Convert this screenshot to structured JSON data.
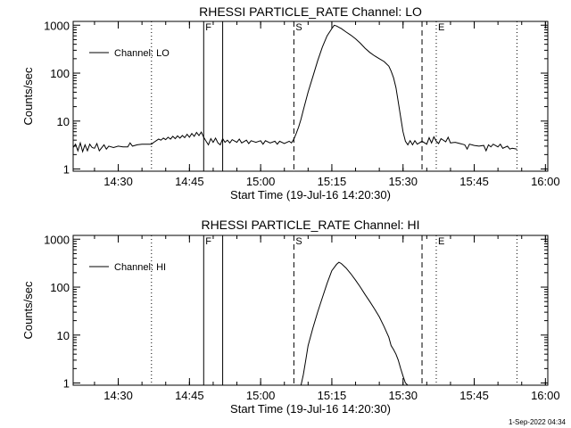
{
  "footer": {
    "timestamp": "1-Sep-2022 04:34"
  },
  "chart_data": [
    {
      "type": "line",
      "title": "RHESSI PARTICLE_RATE Channel: LO",
      "xlabel": "Start Time (19-Jul-16 14:20:30)",
      "ylabel": "Counts/sec",
      "yscale": "log",
      "xlim_minutes": [
        "14:20:30",
        "16:00:30"
      ],
      "ylim": [
        0.9,
        1200
      ],
      "xticks": [
        "14:30",
        "14:45",
        "15:00",
        "15:15",
        "15:30",
        "15:45",
        "16:00"
      ],
      "yticks": [
        "1",
        "10",
        "100",
        "1000"
      ],
      "legend": {
        "label": "Channel: LO",
        "position": "top-left"
      },
      "grid": false,
      "markers": [
        {
          "label": "",
          "time": "14:37",
          "style": "dotted"
        },
        {
          "label": "F",
          "time": "14:48",
          "style": "solid"
        },
        {
          "label": "",
          "time": "14:52",
          "style": "solid"
        },
        {
          "label": "S",
          "time": "15:07",
          "style": "dashed"
        },
        {
          "label": "",
          "time": "15:34",
          "style": "dashed"
        },
        {
          "label": "E",
          "time": "15:37",
          "style": "dotted"
        },
        {
          "label": "",
          "time": "15:54",
          "style": "dotted"
        }
      ],
      "series": [
        {
          "name": "Channel: LO",
          "points": [
            [
              "14:20:30",
              2.8
            ],
            [
              "14:21:00",
              3.3
            ],
            [
              "14:21:30",
              2.4
            ],
            [
              "14:22:00",
              3.5
            ],
            [
              "14:22:30",
              2.3
            ],
            [
              "14:23:00",
              3.2
            ],
            [
              "14:23:30",
              2.4
            ],
            [
              "14:24:00",
              3.3
            ],
            [
              "14:24:30",
              2.8
            ],
            [
              "14:25:00",
              2.7
            ],
            [
              "14:25:30",
              3.4
            ],
            [
              "14:26:00",
              2.4
            ],
            [
              "14:27:00",
              3.2
            ],
            [
              "14:27:30",
              2.6
            ],
            [
              "14:28:00",
              3.0
            ],
            [
              "14:29:00",
              2.8
            ],
            [
              "14:30:00",
              3.0
            ],
            [
              "14:31:00",
              2.9
            ],
            [
              "14:32:00",
              2.9
            ],
            [
              "14:32:30",
              3.5
            ],
            [
              "14:33:00",
              3.0
            ],
            [
              "14:34:00",
              3.2
            ],
            [
              "14:35:00",
              3.3
            ],
            [
              "14:36:00",
              3.3
            ],
            [
              "14:37:00",
              3.3
            ],
            [
              "14:37:30",
              3.6
            ],
            [
              "14:38:00",
              3.9
            ],
            [
              "14:38:30",
              4.2
            ],
            [
              "14:39:00",
              4.0
            ],
            [
              "14:39:30",
              4.4
            ],
            [
              "14:40:00",
              4.1
            ],
            [
              "14:40:30",
              4.6
            ],
            [
              "14:41:00",
              4.2
            ],
            [
              "14:41:30",
              4.8
            ],
            [
              "14:42:00",
              4.3
            ],
            [
              "14:42:30",
              4.9
            ],
            [
              "14:43:00",
              4.4
            ],
            [
              "14:43:30",
              5.0
            ],
            [
              "14:44:00",
              4.5
            ],
            [
              "14:44:30",
              5.3
            ],
            [
              "14:45:00",
              4.6
            ],
            [
              "14:45:30",
              5.5
            ],
            [
              "14:46:00",
              4.8
            ],
            [
              "14:46:30",
              5.8
            ],
            [
              "14:47:00",
              5.0
            ],
            [
              "14:47:30",
              5.9
            ],
            [
              "14:48:00",
              4.6
            ],
            [
              "14:48:30",
              3.8
            ],
            [
              "14:49:00",
              3.2
            ],
            [
              "14:49:30",
              4.3
            ],
            [
              "14:50:00",
              3.6
            ],
            [
              "14:50:30",
              4.4
            ],
            [
              "14:51:00",
              3.5
            ],
            [
              "14:51:30",
              3.2
            ],
            [
              "14:52:00",
              4.3
            ],
            [
              "14:52:30",
              3.6
            ],
            [
              "14:53:00",
              4.0
            ],
            [
              "14:53:30",
              3.5
            ],
            [
              "14:54:00",
              4.1
            ],
            [
              "14:55:00",
              3.6
            ],
            [
              "14:55:30",
              4.2
            ],
            [
              "14:56:00",
              3.5
            ],
            [
              "14:57:00",
              4.0
            ],
            [
              "14:57:30",
              3.4
            ],
            [
              "14:58:00",
              3.9
            ],
            [
              "14:59:00",
              3.6
            ],
            [
              "15:00:00",
              3.9
            ],
            [
              "15:00:30",
              3.3
            ],
            [
              "15:01:00",
              3.9
            ],
            [
              "15:02:00",
              3.5
            ],
            [
              "15:03:00",
              3.8
            ],
            [
              "15:03:30",
              3.3
            ],
            [
              "15:04:00",
              3.8
            ],
            [
              "15:05:00",
              3.4
            ],
            [
              "15:06:00",
              3.8
            ],
            [
              "15:06:30",
              3.5
            ],
            [
              "15:07:00",
              4.2
            ],
            [
              "15:07:30",
              5.5
            ],
            [
              "15:08:00",
              7.5
            ],
            [
              "15:08:30",
              11
            ],
            [
              "15:09:00",
              17
            ],
            [
              "15:10:00",
              40
            ],
            [
              "15:11:00",
              85
            ],
            [
              "15:12:00",
              180
            ],
            [
              "15:13:00",
              350
            ],
            [
              "15:14:00",
              600
            ],
            [
              "15:15:00",
              850
            ],
            [
              "15:15:30",
              1000
            ],
            [
              "15:16:00",
              960
            ],
            [
              "15:17:00",
              850
            ],
            [
              "15:18:00",
              720
            ],
            [
              "15:19:00",
              620
            ],
            [
              "15:20:00",
              520
            ],
            [
              "15:21:00",
              420
            ],
            [
              "15:22:00",
              330
            ],
            [
              "15:23:00",
              270
            ],
            [
              "15:24:00",
              230
            ],
            [
              "15:25:00",
              200
            ],
            [
              "15:26:00",
              175
            ],
            [
              "15:27:00",
              140
            ],
            [
              "15:27:30",
              110
            ],
            [
              "15:28:00",
              80
            ],
            [
              "15:28:30",
              50
            ],
            [
              "15:29:00",
              25
            ],
            [
              "15:29:30",
              12
            ],
            [
              "15:30:00",
              6
            ],
            [
              "15:30:30",
              3.8
            ],
            [
              "15:31:00",
              3.2
            ],
            [
              "15:31:30",
              3.9
            ],
            [
              "15:32:00",
              3.2
            ],
            [
              "15:32:30",
              3.9
            ],
            [
              "15:33:00",
              3.3
            ],
            [
              "15:34:00",
              3.8
            ],
            [
              "15:35:00",
              3.3
            ],
            [
              "15:35:30",
              4.5
            ],
            [
              "15:36:00",
              3.5
            ],
            [
              "15:36:30",
              4.7
            ],
            [
              "15:37:00",
              3.8
            ],
            [
              "15:37:30",
              3.4
            ],
            [
              "15:38:00",
              4.3
            ],
            [
              "15:39:00",
              3.7
            ],
            [
              "15:39:30",
              4.6
            ],
            [
              "15:40:00",
              3.5
            ],
            [
              "15:41:00",
              3.6
            ],
            [
              "15:42:00",
              3.4
            ],
            [
              "15:42:30",
              3.3
            ],
            [
              "15:43:00",
              3.2
            ],
            [
              "15:43:30",
              2.6
            ],
            [
              "15:44:00",
              3.3
            ],
            [
              "15:45:00",
              3.1
            ],
            [
              "15:46:00",
              3.0
            ],
            [
              "15:47:00",
              3.1
            ],
            [
              "15:47:30",
              2.4
            ],
            [
              "15:48:00",
              3.2
            ],
            [
              "15:48:30",
              2.9
            ],
            [
              "15:49:00",
              3.3
            ],
            [
              "15:50:00",
              2.9
            ],
            [
              "15:50:30",
              3.3
            ],
            [
              "15:51:00",
              2.7
            ],
            [
              "15:52:00",
              3.0
            ],
            [
              "15:52:30",
              2.6
            ],
            [
              "15:53:00",
              2.7
            ],
            [
              "15:54:00",
              2.6
            ]
          ]
        }
      ]
    },
    {
      "type": "line",
      "title": "RHESSI PARTICLE_RATE Channel: HI",
      "xlabel": "Start Time (19-Jul-16 14:20:30)",
      "ylabel": "Counts/sec",
      "yscale": "log",
      "xlim_minutes": [
        "14:20:30",
        "16:00:30"
      ],
      "ylim": [
        0.9,
        1200
      ],
      "xticks": [
        "14:30",
        "14:45",
        "15:00",
        "15:15",
        "15:30",
        "15:45",
        "16:00"
      ],
      "yticks": [
        "1",
        "10",
        "100",
        "1000"
      ],
      "legend": {
        "label": "Channel: HI",
        "position": "top-left"
      },
      "grid": false,
      "markers": [
        {
          "label": "",
          "time": "14:37",
          "style": "dotted"
        },
        {
          "label": "F",
          "time": "14:48",
          "style": "solid"
        },
        {
          "label": "",
          "time": "14:52",
          "style": "solid"
        },
        {
          "label": "S",
          "time": "15:07",
          "style": "dashed"
        },
        {
          "label": "",
          "time": "15:34",
          "style": "dashed"
        },
        {
          "label": "E",
          "time": "15:37",
          "style": "dotted"
        },
        {
          "label": "",
          "time": "15:54",
          "style": "dotted"
        }
      ],
      "series": [
        {
          "name": "Channel: HI",
          "points": [
            [
              "15:08:30",
              0.9
            ],
            [
              "15:09:00",
              1.5
            ],
            [
              "15:09:30",
              3
            ],
            [
              "15:10:00",
              6
            ],
            [
              "15:11:00",
              14
            ],
            [
              "15:12:00",
              30
            ],
            [
              "15:13:00",
              60
            ],
            [
              "15:14:00",
              120
            ],
            [
              "15:15:00",
              220
            ],
            [
              "15:16:00",
              300
            ],
            [
              "15:16:30",
              330
            ],
            [
              "15:17:00",
              310
            ],
            [
              "15:18:00",
              250
            ],
            [
              "15:19:00",
              190
            ],
            [
              "15:20:00",
              140
            ],
            [
              "15:21:00",
              100
            ],
            [
              "15:22:00",
              70
            ],
            [
              "15:23:00",
              50
            ],
            [
              "15:24:00",
              35
            ],
            [
              "15:25:00",
              24
            ],
            [
              "15:26:00",
              15
            ],
            [
              "15:27:00",
              9
            ],
            [
              "15:27:30",
              6
            ],
            [
              "15:28:00",
              5
            ],
            [
              "15:28:30",
              4
            ],
            [
              "15:29:00",
              3
            ],
            [
              "15:29:30",
              2
            ],
            [
              "15:30:00",
              1.4
            ],
            [
              "15:30:30",
              1.0
            ],
            [
              "15:31:00",
              0.9
            ]
          ]
        }
      ]
    }
  ]
}
